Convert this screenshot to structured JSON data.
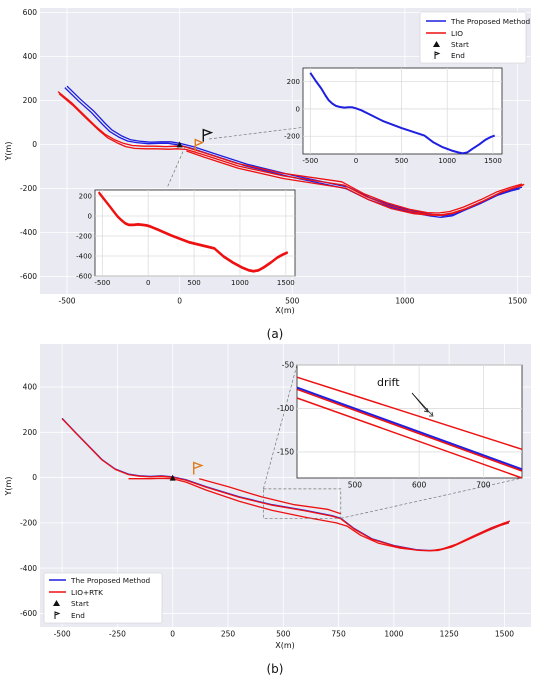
{
  "colors": {
    "proposed": "#1f1fe0",
    "lio": "#ee1111",
    "end_flag_a": "#111111",
    "end_flag_b": "#e07b1a",
    "plot_bg": "#eaeaf2",
    "grid": "#ffffff"
  },
  "chart_data": [
    {
      "id": "a",
      "type": "line",
      "caption": "(a)",
      "xlabel": "X(m)",
      "ylabel": "Y(m)",
      "xlim": [
        -620,
        1560
      ],
      "ylim": [
        -680,
        620
      ],
      "xticks": [
        -500,
        0,
        500,
        1000,
        1500
      ],
      "xtick_labels": [
        "-500",
        "0",
        "500",
        "1000",
        "1500"
      ],
      "yticks": [
        -600,
        -400,
        -200,
        0,
        200,
        400,
        600
      ],
      "ytick_labels": [
        "-600",
        "-400",
        "-200",
        "0",
        "200",
        "400",
        "600"
      ],
      "grid": true,
      "legend": {
        "position": "top-right",
        "entries": [
          "The Proposed Method",
          "LIO",
          "Start",
          "End"
        ]
      },
      "start": [
        0,
        0
      ],
      "end": [
        105,
        40
      ],
      "series": [
        {
          "name": "The Proposed Method",
          "color_key": "proposed",
          "x": [
            -500,
            -440,
            -380,
            -330,
            -300,
            -260,
            -220,
            -180,
            -130,
            -80,
            -40,
            0,
            60,
            150,
            300,
            500,
            750,
            850,
            950,
            1050,
            1120,
            1170,
            1220,
            1270,
            1350,
            1420,
            1480,
            1520
          ],
          "y": [
            265,
            205,
            150,
            95,
            65,
            40,
            22,
            15,
            10,
            12,
            12,
            5,
            -10,
            -40,
            -90,
            -140,
            -195,
            -245,
            -280,
            -305,
            -318,
            -325,
            -318,
            -295,
            -260,
            -225,
            -205,
            -195
          ]
        },
        {
          "name": "",
          "color_key": "proposed",
          "x": [
            -510,
            -450,
            -390,
            -340,
            -310,
            -270,
            -230,
            -190,
            -140,
            -90,
            -50,
            -10,
            50,
            140,
            290,
            490,
            740,
            840,
            940,
            1040,
            1110,
            1160,
            1210,
            1260,
            1340,
            1410,
            1470,
            1510
          ],
          "y": [
            258,
            198,
            143,
            88,
            58,
            33,
            15,
            8,
            3,
            5,
            5,
            -2,
            -17,
            -47,
            -97,
            -147,
            -202,
            -252,
            -287,
            -312,
            -325,
            -332,
            -325,
            -302,
            -267,
            -232,
            -212,
            -202
          ]
        },
        {
          "name": "LIO",
          "color_key": "lio",
          "x": [
            -540,
            -480,
            -420,
            -370,
            -330,
            -290,
            -250,
            -210,
            -160,
            -110,
            -60,
            -20,
            20,
            100,
            250,
            450,
            720,
            820,
            920,
            1020,
            1100,
            1150,
            1200,
            1260,
            1340,
            1410,
            1470,
            1520
          ],
          "y": [
            240,
            190,
            130,
            80,
            45,
            22,
            5,
            -5,
            -8,
            -8,
            -10,
            -8,
            -10,
            -35,
            -85,
            -130,
            -170,
            -225,
            -265,
            -295,
            -310,
            -312,
            -305,
            -285,
            -250,
            -215,
            -195,
            -180
          ]
        },
        {
          "name": "",
          "color_key": "lio",
          "x": [
            -535,
            -475,
            -415,
            -360,
            -320,
            -280,
            -240,
            -200,
            -150,
            -100,
            -50,
            -10,
            30,
            110,
            260,
            460,
            730,
            830,
            930,
            1030,
            1110,
            1160,
            1210,
            1270,
            1350,
            1420,
            1480,
            1525
          ],
          "y": [
            230,
            178,
            118,
            65,
            30,
            8,
            -10,
            -18,
            -20,
            -20,
            -22,
            -20,
            -23,
            -48,
            -98,
            -143,
            -185,
            -238,
            -278,
            -306,
            -318,
            -320,
            -312,
            -292,
            -256,
            -221,
            -200,
            -186
          ]
        },
        {
          "name": "",
          "color_key": "lio",
          "x": [
            30,
            110,
            260,
            460,
            740,
            840,
            940,
            1040,
            1120,
            1170,
            1220,
            1280,
            1360,
            1430,
            1490,
            1530
          ],
          "y": [
            -30,
            -58,
            -108,
            -155,
            -200,
            -252,
            -292,
            -315,
            -322,
            -322,
            -312,
            -290,
            -252,
            -216,
            -196,
            -182
          ]
        }
      ],
      "insets": [
        {
          "id": "a-inset-blue",
          "type": "line",
          "xlim": [
            -580,
            1600
          ],
          "ylim": [
            -330,
            300
          ],
          "xticks": [
            -500,
            0,
            500,
            1000,
            1500
          ],
          "xtick_labels": [
            "-500",
            "0",
            "500",
            "1000",
            "1500"
          ],
          "yticks": [
            -200,
            0,
            200
          ],
          "ytick_labels": [
            "-200",
            "0",
            "200"
          ],
          "color_key": "proposed",
          "x": [
            -500,
            -440,
            -380,
            -330,
            -300,
            -260,
            -220,
            -180,
            -130,
            -80,
            -40,
            0,
            60,
            150,
            300,
            500,
            750,
            850,
            950,
            1050,
            1120,
            1170,
            1220,
            1270,
            1350,
            1420,
            1480,
            1520
          ],
          "y": [
            265,
            205,
            150,
            95,
            65,
            40,
            22,
            15,
            10,
            12,
            12,
            5,
            -10,
            -40,
            -90,
            -140,
            -195,
            -245,
            -280,
            -305,
            -318,
            -325,
            -318,
            -295,
            -260,
            -225,
            -205,
            -195
          ]
        },
        {
          "id": "a-inset-red",
          "type": "line",
          "xlim": [
            -580,
            1600
          ],
          "ylim": [
            -600,
            260
          ],
          "xticks": [
            -500,
            0,
            500,
            1000,
            1500
          ],
          "xtick_labels": [
            "-500",
            "0",
            "500",
            "1000",
            "1500"
          ],
          "yticks": [
            -600,
            -400,
            -200,
            0,
            200
          ],
          "ytick_labels": [
            "-600",
            "-400",
            "-200",
            "0",
            "200"
          ],
          "color_key": "lio",
          "x": [
            -540,
            -480,
            -420,
            -370,
            -330,
            -290,
            -250,
            -210,
            -160,
            -110,
            -60,
            -20,
            20,
            100,
            250,
            450,
            720,
            820,
            920,
            1020,
            1100,
            1150,
            1200,
            1260,
            1340,
            1410,
            1470,
            1520
          ],
          "y": [
            240,
            170,
            100,
            40,
            -5,
            -40,
            -70,
            -85,
            -85,
            -80,
            -85,
            -90,
            -100,
            -130,
            -190,
            -260,
            -320,
            -400,
            -460,
            -510,
            -540,
            -548,
            -540,
            -510,
            -460,
            -410,
            -380,
            -360
          ]
        }
      ]
    },
    {
      "id": "b",
      "type": "line",
      "caption": "(b)",
      "xlabel": "X(m)",
      "ylabel": "Y(m)",
      "xlim": [
        -600,
        1620
      ],
      "ylim": [
        -660,
        590
      ],
      "xticks": [
        -500,
        -250,
        0,
        250,
        500,
        750,
        1000,
        1250,
        1500
      ],
      "xtick_labels": [
        "-500",
        "-250",
        "0",
        "250",
        "500",
        "750",
        "1000",
        "1250",
        "1500"
      ],
      "yticks": [
        -600,
        -400,
        -200,
        0,
        200,
        400
      ],
      "ytick_labels": [
        "-600",
        "-400",
        "-200",
        "0",
        "200",
        "400"
      ],
      "grid": true,
      "legend": {
        "position": "bottom-left",
        "entries": [
          "The Proposed Method",
          "LIO+RTK",
          "Start",
          "End"
        ]
      },
      "start": [
        0,
        0
      ],
      "end": [
        95,
        40
      ],
      "series": [
        {
          "name": "The Proposed Method",
          "color_key": "proposed",
          "x": [
            -500,
            -440,
            -380,
            -320,
            -260,
            -200,
            -150,
            -100,
            -50,
            0,
            60,
            150,
            300,
            450,
            600,
            720,
            760,
            820,
            900,
            1000,
            1100,
            1160,
            1200,
            1260,
            1340,
            1420,
            1480,
            1520
          ],
          "y": [
            262,
            200,
            140,
            80,
            38,
            15,
            8,
            5,
            8,
            3,
            -10,
            -40,
            -85,
            -120,
            -145,
            -168,
            -180,
            -225,
            -270,
            -300,
            -318,
            -322,
            -320,
            -305,
            -270,
            -235,
            -210,
            -198
          ]
        },
        {
          "name": "LIO+RTK",
          "color_key": "lio",
          "x": [
            -500,
            -440,
            -380,
            -320,
            -260,
            -200,
            -150,
            -100,
            -50,
            0,
            60,
            150,
            300,
            450,
            600,
            720,
            760,
            820,
            900,
            1000,
            1100,
            1160,
            1200,
            1260,
            1340,
            1420,
            1480,
            1520
          ],
          "y": [
            260,
            198,
            138,
            78,
            36,
            13,
            6,
            3,
            6,
            1,
            -12,
            -42,
            -87,
            -122,
            -147,
            -170,
            -182,
            -227,
            -272,
            -302,
            -320,
            -324,
            -322,
            -307,
            -272,
            -237,
            -212,
            -200
          ]
        },
        {
          "name": "",
          "color_key": "lio",
          "x": [
            -200,
            -150,
            -100,
            -50,
            0,
            60,
            150,
            300,
            450,
            600,
            740,
            790,
            850,
            930,
            1030,
            1120,
            1170,
            1220,
            1280,
            1360,
            1440,
            1500,
            1525
          ],
          "y": [
            -5,
            -5,
            -5,
            -3,
            -5,
            -20,
            -55,
            -105,
            -145,
            -175,
            -200,
            -215,
            -255,
            -290,
            -312,
            -322,
            -322,
            -315,
            -295,
            -258,
            -222,
            -200,
            -192
          ]
        },
        {
          "name": "",
          "color_key": "lio",
          "x": [
            120,
            250,
            400,
            550,
            700,
            760
          ],
          "y": [
            -5,
            -40,
            -85,
            -120,
            -140,
            -160
          ]
        }
      ],
      "zoom_box": {
        "x": [
          410,
          760
        ],
        "y": [
          -180,
          -50
        ]
      },
      "inset": {
        "id": "b-inset",
        "type": "line",
        "xlim": [
          410,
          760
        ],
        "ylim": [
          -180,
          -50
        ],
        "xticks": [
          500,
          600,
          700
        ],
        "xtick_labels": [
          "500",
          "600",
          "700"
        ],
        "yticks": [
          -150,
          -100,
          -50
        ],
        "ytick_labels": [
          "-150",
          "-100",
          "-50"
        ],
        "annotation": "drift",
        "series": [
          {
            "color_key": "lio",
            "x": [
              410,
              760
            ],
            "y": [
              -64,
              -147
            ]
          },
          {
            "color_key": "proposed",
            "x": [
              410,
              760
            ],
            "y": [
              -76,
              -170
            ]
          },
          {
            "color_key": "lio",
            "x": [
              410,
              760
            ],
            "y": [
              -78,
              -172
            ]
          },
          {
            "color_key": "lio",
            "x": [
              410,
              760
            ],
            "y": [
              -88,
              -180
            ]
          }
        ]
      }
    }
  ]
}
